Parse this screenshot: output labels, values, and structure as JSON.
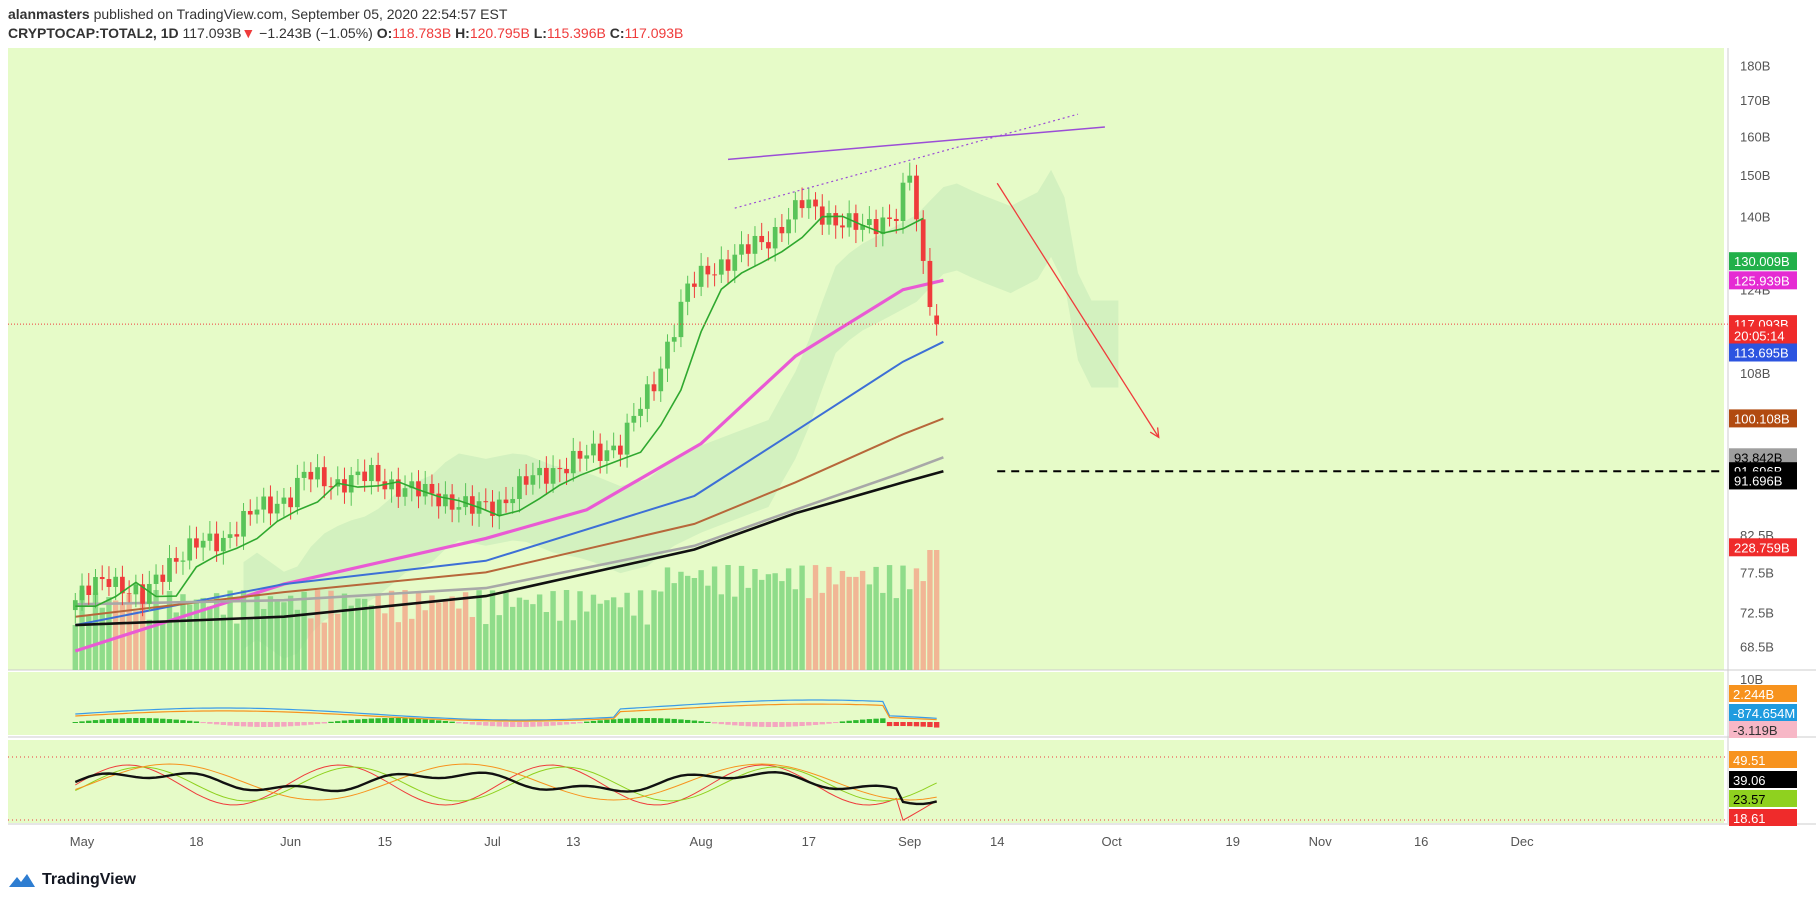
{
  "header": {
    "author": "alanmasters",
    "published_text": "published on TradingView.com, September 05, 2020 22:54:57 EST",
    "symbol": "CRYPTOCAP:TOTAL2, 1D",
    "price": "117.093B",
    "change": "−1.243B (−1.05%)",
    "o_label": "O:",
    "o_value": "118.783B",
    "h_label": "H:",
    "h_value": "120.795B",
    "l_label": "L:",
    "l_value": "115.396B",
    "c_label": "C:",
    "c_value": "117.093B",
    "change_arrow": "▼"
  },
  "footer": {
    "brand": "TradingView",
    "logo_icon": "tradingview-logo-icon"
  },
  "colors": {
    "background": "#e6fbc8",
    "cloud": "#cfeebd",
    "up": "#59c459",
    "down": "#ef3b3b",
    "ma_magenta": "#e95ad4",
    "ma_blue": "#3d6fd6",
    "ma_brown": "#b7673a",
    "ma_gray": "#a8a8a8",
    "ma_black": "#111111",
    "trendline": "#9b4dd6",
    "arrow": "#ef3b3b"
  },
  "chart_data": [
    {
      "type": "candlestick",
      "panel": "price",
      "y_scale": "log",
      "ylim": [
        66,
        185
      ],
      "yticks": [
        "180B",
        "170B",
        "160B",
        "150B",
        "140B",
        "130B",
        "124B",
        "108B",
        "82.5B",
        "77.5B",
        "72.5B",
        "68.5B"
      ],
      "x_ticks": [
        "May",
        "18",
        "Jun",
        "15",
        "Jul",
        "13",
        "Aug",
        "17",
        "Sep",
        "14",
        "Oct",
        "19",
        "Nov",
        "16",
        "Dec"
      ],
      "x_dates": [
        "2020-05-01",
        "2020-05-18",
        "2020-06-01",
        "2020-06-15",
        "2020-07-01",
        "2020-07-13",
        "2020-08-01",
        "2020-08-17",
        "2020-09-01",
        "2020-09-14",
        "2020-10-01",
        "2020-10-19",
        "2020-11-01",
        "2020-11-16",
        "2020-12-01"
      ],
      "close_series": [
        [
          "2020-04-30",
          74
        ],
        [
          "2020-05-05",
          77
        ],
        [
          "2020-05-10",
          74
        ],
        [
          "2020-05-14",
          79
        ],
        [
          "2020-05-18",
          81
        ],
        [
          "2020-05-22",
          82
        ],
        [
          "2020-05-27",
          86
        ],
        [
          "2020-06-01",
          88
        ],
        [
          "2020-06-03",
          91
        ],
        [
          "2020-06-08",
          90
        ],
        [
          "2020-06-13",
          91
        ],
        [
          "2020-06-18",
          89
        ],
        [
          "2020-06-23",
          88
        ],
        [
          "2020-06-28",
          86
        ],
        [
          "2020-07-02",
          87
        ],
        [
          "2020-07-06",
          90
        ],
        [
          "2020-07-10",
          92
        ],
        [
          "2020-07-15",
          94
        ],
        [
          "2020-07-20",
          96
        ],
        [
          "2020-07-25",
          106
        ],
        [
          "2020-07-30",
          124
        ],
        [
          "2020-08-02",
          128
        ],
        [
          "2020-08-06",
          131
        ],
        [
          "2020-08-11",
          135
        ],
        [
          "2020-08-16",
          143
        ],
        [
          "2020-08-20",
          140
        ],
        [
          "2020-08-25",
          137
        ],
        [
          "2020-08-30",
          141
        ],
        [
          "2020-09-01",
          150
        ],
        [
          "2020-09-03",
          128
        ],
        [
          "2020-09-05",
          117.093
        ]
      ],
      "last_bar": {
        "date": "2020-09-05",
        "open": 118.783,
        "high": 120.795,
        "low": 115.396,
        "close": 117.093
      },
      "moving_averages": [
        {
          "color": "#e95ad4",
          "last": "125.939B",
          "points": [
            [
              "2020-04-30",
              68
            ],
            [
              "2020-05-31",
              76
            ],
            [
              "2020-06-30",
              82
            ],
            [
              "2020-07-15",
              86
            ],
            [
              "2020-08-01",
              96
            ],
            [
              "2020-08-15",
              111
            ],
            [
              "2020-08-31",
              124
            ],
            [
              "2020-09-06",
              125.939
            ]
          ]
        },
        {
          "color": "#3d6fd6",
          "last": "113.695B",
          "points": [
            [
              "2020-04-30",
              71
            ],
            [
              "2020-05-31",
              76
            ],
            [
              "2020-06-30",
              79
            ],
            [
              "2020-07-31",
              88
            ],
            [
              "2020-08-15",
              98
            ],
            [
              "2020-08-31",
              110
            ],
            [
              "2020-09-06",
              113.695
            ]
          ]
        },
        {
          "color": "#b7673a",
          "last": "100.108B",
          "points": [
            [
              "2020-04-30",
              72
            ],
            [
              "2020-05-31",
              75
            ],
            [
              "2020-06-30",
              77.5
            ],
            [
              "2020-07-31",
              84
            ],
            [
              "2020-08-15",
              90
            ],
            [
              "2020-08-31",
              97.5
            ],
            [
              "2020-09-06",
              100.108
            ]
          ]
        },
        {
          "color": "#a8a8a8",
          "last": "93.842B",
          "points": [
            [
              "2020-04-30",
              73.5
            ],
            [
              "2020-05-31",
              74
            ],
            [
              "2020-06-30",
              75.5
            ],
            [
              "2020-07-31",
              81
            ],
            [
              "2020-08-15",
              86
            ],
            [
              "2020-08-31",
              91.5
            ],
            [
              "2020-09-06",
              93.842
            ]
          ]
        },
        {
          "color": "#111111",
          "last": "91.696B",
          "points": [
            [
              "2020-04-30",
              71
            ],
            [
              "2020-05-31",
              72
            ],
            [
              "2020-06-30",
              74.5
            ],
            [
              "2020-07-31",
              80.5
            ],
            [
              "2020-08-15",
              85.5
            ],
            [
              "2020-08-31",
              90
            ],
            [
              "2020-09-06",
              91.696
            ]
          ]
        }
      ],
      "price_tags": [
        {
          "label": "130.009B",
          "value": 130.009,
          "bg": "#22b04a",
          "fg": "#ffffff"
        },
        {
          "label": "125.939B",
          "value": 125.939,
          "bg": "#e52bd3",
          "fg": "#ffffff"
        },
        {
          "label": "117.093B",
          "value": 117.093,
          "bg": "#ef2b2b",
          "fg": "#ffffff"
        },
        {
          "label": "20:05:14",
          "value": 114.9,
          "bg": "#ef2b2b",
          "fg": "#ffffff"
        },
        {
          "label": "113.695B",
          "value": 111.7,
          "bg": "#2c54e0",
          "fg": "#ffffff"
        },
        {
          "label": "100.108B",
          "value": 100.108,
          "bg": "#b14a10",
          "fg": "#ffffff"
        },
        {
          "label": "93.842B",
          "value": 93.842,
          "bg": "#9f9f9f",
          "fg": "#000000"
        },
        {
          "label": "91.696B",
          "value": 91.696,
          "bg": "#000000",
          "fg": "#ffffff"
        },
        {
          "label": "91.696B",
          "value": 90.3,
          "bg": "#000000",
          "fg": "#ffffff"
        },
        {
          "label": "228.759B",
          "value": 80.8,
          "bg": "#ef2b2b",
          "fg": "#ffffff"
        }
      ],
      "drawings": {
        "resistance_line": [
          [
            "2020-08-05",
            154
          ],
          [
            "2020-09-30",
            162.5
          ]
        ],
        "dotted_line": [
          [
            "2020-08-06",
            142
          ],
          [
            "2020-09-26",
            166
          ]
        ],
        "arrow": [
          [
            "2020-09-14",
            148
          ],
          [
            "2020-10-08",
            97
          ]
        ],
        "dashed_level": {
          "value": 91.696,
          "from": "2020-09-14",
          "to": "2020-12-31"
        }
      },
      "volume": "relative bars, last value 228.759B"
    },
    {
      "type": "macd",
      "panel": "indicator-1",
      "yticks": [
        "10B",
        "-3.119B"
      ],
      "tags": [
        {
          "label": "2.244B",
          "bg": "#f7931e",
          "fg": "#ffffff"
        },
        {
          "label": "-874.654M",
          "bg": "#1f9bdf",
          "fg": "#ffffff"
        },
        {
          "label": "-3.119B",
          "bg": "#f7b7c6",
          "fg": "#333333"
        }
      ]
    },
    {
      "type": "stochastic_rsi",
      "panel": "indicator-2",
      "tags": [
        {
          "label": "49.51",
          "bg": "#f7931e",
          "fg": "#ffffff"
        },
        {
          "label": "39.06",
          "bg": "#000000",
          "fg": "#ffffff"
        },
        {
          "label": "23.57",
          "bg": "#8fd11f",
          "fg": "#000000"
        },
        {
          "label": "18.61",
          "bg": "#ef2b2b",
          "fg": "#ffffff"
        }
      ]
    }
  ]
}
